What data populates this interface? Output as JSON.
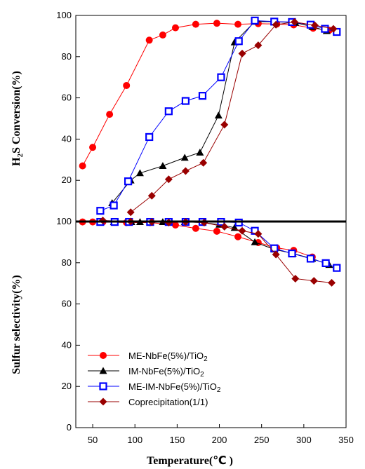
{
  "chart_data": {
    "type": "line",
    "x_label_text": "Temperature(",
    "x_label_unit": "℃",
    "x_label_close": " )",
    "xlim": [
      30,
      350
    ],
    "x_ticks": [
      50,
      100,
      150,
      200,
      250,
      300,
      350
    ],
    "grid": false,
    "legend_position": "lower-left of bottom panel",
    "panels": [
      {
        "id": "top",
        "ylabel_main": "H",
        "ylabel_sub": "2",
        "ylabel_rest": "S Conversion(%)",
        "ylim": [
          0,
          100
        ],
        "y_ticks": [
          20,
          40,
          60,
          80,
          100
        ],
        "series": [
          {
            "color": "#ff0000",
            "marker": "circle",
            "x": [
              38,
              50,
              70,
              90,
              117,
              133,
              148,
              172,
              197,
              222,
              246,
              268,
              288,
              311,
              330
            ],
            "y": [
              27,
              36,
              52,
              66,
              88,
              90.5,
              94,
              95.7,
              96.2,
              95.7,
              96,
              95.8,
              95.4,
              93.8,
              92.8
            ]
          },
          {
            "color": "#000000",
            "marker": "triangle",
            "x": [
              73,
              95,
              106,
              133,
              159,
              177,
              199,
              218,
              242,
              265,
              290,
              310,
              327
            ],
            "y": [
              9,
              20,
              23.5,
              27,
              31,
              33.5,
              51.5,
              87,
              97,
              97,
              96.5,
              94.5,
              92.5
            ]
          },
          {
            "color": "#0000ff",
            "marker": "square-open",
            "x": [
              59,
              75,
              92,
              117,
              140,
              160,
              180,
              202,
              223,
              242,
              265,
              286,
              308,
              325,
              339
            ],
            "y": [
              5.2,
              7.8,
              19.5,
              41,
              53.5,
              58.5,
              61,
              70,
              87.5,
              97.5,
              97,
              96.8,
              95.5,
              93.5,
              92
            ]
          },
          {
            "color": "#990000",
            "marker": "diamond",
            "x": [
              95,
              120,
              140,
              160,
              181,
              206,
              227,
              246,
              267,
              289,
              313,
              335
            ],
            "y": [
              4.5,
              12.5,
              20.5,
              24.5,
              28.5,
              47,
              81.5,
              85.5,
              95.5,
              96.8,
              95.2,
              93.5
            ]
          }
        ]
      },
      {
        "id": "bottom",
        "ylabel": "Sulfur selectivity(%)",
        "ylim": [
          0,
          100
        ],
        "y_ticks": [
          0,
          20,
          40,
          60,
          80,
          100
        ],
        "series": [
          {
            "name": "ME-NbFe(5%)/TiO",
            "name_sub": "2",
            "color": "#ff0000",
            "marker": "circle",
            "x": [
              38,
              50,
              62,
              90,
              118,
              148,
              172,
              197,
              222,
              246,
              268,
              288,
              310
            ],
            "y": [
              99.8,
              99.8,
              99.8,
              99.5,
              99.5,
              98.3,
              96.7,
              95.3,
              92.6,
              89.8,
              87.2,
              86,
              82.8
            ]
          },
          {
            "name": "IM-NbFe(5%)/TiO",
            "name_sub": "2",
            "color": "#000000",
            "marker": "triangle",
            "x": [
              75,
              96,
              106,
              133,
              159,
              180,
              200,
              218,
              242,
              265,
              287,
              310,
              330
            ],
            "y": [
              99.8,
              99.8,
              99.8,
              99.8,
              99.8,
              99.5,
              98.5,
              97,
              90,
              86.5,
              84.5,
              82,
              79
            ]
          },
          {
            "name": "ME-IM-NbFe(5%)/TiO",
            "name_sub": "2",
            "color": "#0000ff",
            "marker": "square-open",
            "x": [
              59,
              76,
              93,
              118,
              140,
              160,
              180,
              202,
              223,
              242,
              265,
              286,
              308,
              326,
              339
            ],
            "y": [
              99.8,
              99.8,
              99.8,
              99.8,
              99.8,
              99.8,
              99.8,
              99.8,
              99.5,
              95.5,
              87,
              84.5,
              82,
              79.8,
              77.5
            ]
          },
          {
            "name": "Coprecipitation(1/1)",
            "name_sub": "",
            "color": "#990000",
            "marker": "diamond",
            "x": [
              62,
              95,
              120,
              140,
              160,
              182,
              206,
              227,
              246,
              267,
              290,
              312,
              333
            ],
            "y": [
              100.5,
              100,
              99.8,
              99.5,
              99.8,
              99.5,
              97.5,
              95.5,
              94,
              84,
              72.3,
              71.2,
              70.3
            ]
          }
        ]
      }
    ]
  }
}
